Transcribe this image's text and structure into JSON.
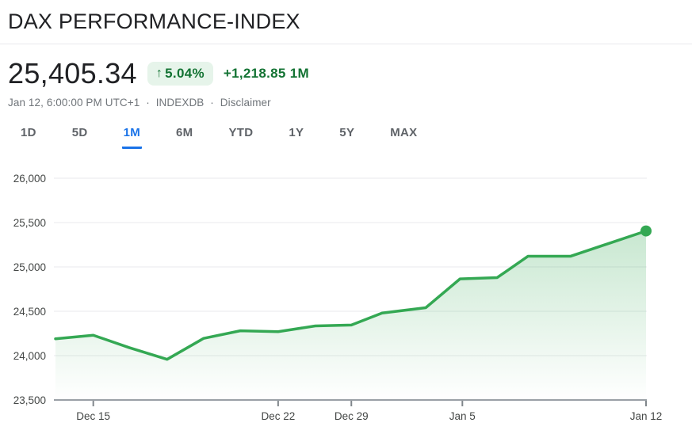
{
  "header": {
    "title": "DAX PERFORMANCE-INDEX"
  },
  "quote": {
    "price": "25,405.34",
    "change_arrow": "↑",
    "change_percent": "5.04%",
    "change_value": "+1,218.85 1M",
    "meta": {
      "datetime": "Jan 12, 6:00:00 PM UTC+1",
      "sep1": "·",
      "exchange": "INDEXDB",
      "sep2": "·",
      "disclaimer": "Disclaimer"
    }
  },
  "range_tabs": {
    "active": "1M",
    "items": [
      {
        "label": "1D"
      },
      {
        "label": "5D"
      },
      {
        "label": "1M"
      },
      {
        "label": "6M"
      },
      {
        "label": "YTD"
      },
      {
        "label": "1Y"
      },
      {
        "label": "5Y"
      },
      {
        "label": "MAX"
      }
    ]
  },
  "colors": {
    "accent_blue": "#1a73e8",
    "positive_green": "#137333",
    "badge_background": "#e6f4ea",
    "line_green": "#34a853",
    "grid_light": "#e8eaed",
    "axis_gray": "#9aa0a6",
    "text_primary": "#202124",
    "text_secondary": "#5f6368"
  },
  "chart_data": {
    "type": "area",
    "title": "DAX PERFORMANCE-INDEX 1M price history",
    "xlabel": "",
    "ylabel": "",
    "ylim": [
      23500,
      26000
    ],
    "grid": true,
    "line_color": "#34a853",
    "marker_last_point": true,
    "y_ticks": [
      {
        "value": 26000,
        "label": "26,000"
      },
      {
        "value": 25500,
        "label": "25,500"
      },
      {
        "value": 25000,
        "label": "25,000"
      },
      {
        "value": 24500,
        "label": "24,500"
      },
      {
        "value": 24000,
        "label": "24,000"
      },
      {
        "value": 23500,
        "label": "23,500"
      }
    ],
    "x_ticks": [
      {
        "label": "Dec 15",
        "pos": 0.064
      },
      {
        "label": "Dec 22",
        "pos": 0.377
      },
      {
        "label": "Dec 29",
        "pos": 0.501
      },
      {
        "label": "Jan 5",
        "pos": 0.689
      },
      {
        "label": "Jan 12",
        "pos": 1.0
      }
    ],
    "points": [
      {
        "pos": 0.0,
        "value": 24190
      },
      {
        "pos": 0.064,
        "value": 24230
      },
      {
        "pos": 0.125,
        "value": 24090
      },
      {
        "pos": 0.189,
        "value": 23958
      },
      {
        "pos": 0.251,
        "value": 24195
      },
      {
        "pos": 0.313,
        "value": 24280
      },
      {
        "pos": 0.377,
        "value": 24270
      },
      {
        "pos": 0.44,
        "value": 24335
      },
      {
        "pos": 0.501,
        "value": 24345
      },
      {
        "pos": 0.553,
        "value": 24480
      },
      {
        "pos": 0.627,
        "value": 24540
      },
      {
        "pos": 0.685,
        "value": 24865
      },
      {
        "pos": 0.748,
        "value": 24880
      },
      {
        "pos": 0.8,
        "value": 25120
      },
      {
        "pos": 0.872,
        "value": 25120
      },
      {
        "pos": 1.0,
        "value": 25405.34
      }
    ]
  }
}
